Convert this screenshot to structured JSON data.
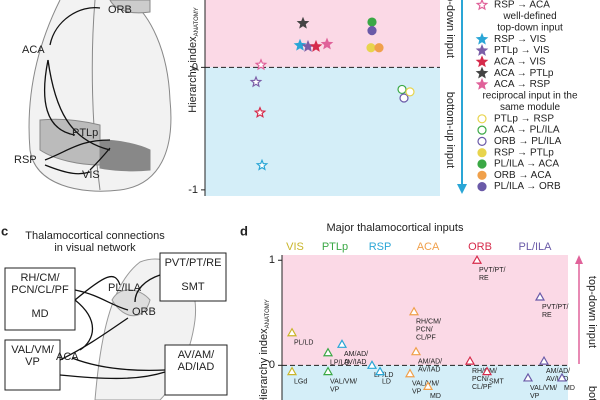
{
  "panel_b": {
    "brain_labels": [
      "ORB",
      "ACA",
      "PTLp",
      "RSP",
      "VIS"
    ],
    "y_axis_label": "Hierarchy index",
    "y_axis_sub": "ANATOMY",
    "yticks": [
      0,
      -1
    ],
    "ylim": [
      -1.05,
      0.55
    ],
    "arrow_top": "top-down input",
    "arrow_bottom": "bottom-up input",
    "stars": [
      {
        "value": 0.36,
        "color": "#444444",
        "filled": true
      },
      {
        "value": 0.18,
        "color": "#2aa6d6",
        "filled": true
      },
      {
        "value": 0.17,
        "color": "#7b5ea7",
        "filled": true
      },
      {
        "value": 0.17,
        "color": "#d62b4b",
        "filled": true
      },
      {
        "value": 0.19,
        "color": "#e0629a",
        "filled": true
      },
      {
        "value": 0.02,
        "color": "#e0629a",
        "filled": false
      },
      {
        "value": -0.12,
        "color": "#7b5ea7",
        "filled": false
      },
      {
        "value": -0.37,
        "color": "#d62b4b",
        "filled": false
      },
      {
        "value": -0.8,
        "color": "#2aa6d6",
        "filled": false
      }
    ],
    "circles": [
      {
        "value": 0.37,
        "color": "#3aa845",
        "filled": true
      },
      {
        "value": 0.3,
        "color": "#6a5aa8",
        "filled": true
      },
      {
        "value": 0.16,
        "color": "#e8d44d",
        "filled": true
      },
      {
        "value": 0.16,
        "color": "#f0a04b",
        "filled": true
      },
      {
        "value": -0.18,
        "color": "#3aa845",
        "filled": false
      },
      {
        "value": -0.25,
        "color": "#6a5aa8",
        "filled": false
      },
      {
        "value": -0.2,
        "color": "#e8d44d",
        "filled": false
      }
    ]
  },
  "legend": [
    {
      "label": "RSP → ACA",
      "marker": "star",
      "filled": false,
      "color": "#e0629a"
    },
    {
      "heading": [
        "well-defined",
        "top-down input"
      ]
    },
    {
      "label": "RSP → VIS",
      "marker": "star",
      "filled": true,
      "color": "#2aa6d6"
    },
    {
      "label": "PTLp → VIS",
      "marker": "star",
      "filled": true,
      "color": "#7b5ea7"
    },
    {
      "label": "ACA → VIS",
      "marker": "star",
      "filled": true,
      "color": "#d62b4b"
    },
    {
      "label": "ACA → PTLp",
      "marker": "star",
      "filled": true,
      "color": "#444444"
    },
    {
      "label": "ACA → RSP",
      "marker": "star",
      "filled": true,
      "color": "#e0629a"
    },
    {
      "heading": [
        "reciprocal input in the",
        "same module"
      ]
    },
    {
      "label": "PTLp → RSP",
      "marker": "circle",
      "filled": false,
      "color": "#e8d44d"
    },
    {
      "label": "ACA → PL/ILA",
      "marker": "circle",
      "filled": false,
      "color": "#3aa845"
    },
    {
      "label": "ORB → PL/ILA",
      "marker": "circle",
      "filled": false,
      "color": "#6a5aa8"
    },
    {
      "label": "RSP → PTLp",
      "marker": "circle",
      "filled": true,
      "color": "#e8d44d"
    },
    {
      "label": "PL/ILA → ACA",
      "marker": "circle",
      "filled": true,
      "color": "#3aa845"
    },
    {
      "label": "ORB → ACA",
      "marker": "circle",
      "filled": true,
      "color": "#f0a04b"
    },
    {
      "label": "PL/ILA → ORB",
      "marker": "circle",
      "filled": true,
      "color": "#6a5aa8"
    }
  ],
  "panel_c": {
    "letter": "c",
    "title": [
      "Thalamocortical connections",
      "in visual network"
    ],
    "boxes": [
      {
        "lines": [
          "RH/CM/",
          "PCN/CL/PF",
          "",
          "MD"
        ]
      },
      {
        "lines": [
          "VAL/VM/",
          "VP"
        ]
      },
      {
        "lines": [
          "PVT/PT/RE",
          "",
          "SMT"
        ]
      },
      {
        "lines": [
          "AV/AM/",
          "AD/IAD"
        ]
      }
    ],
    "areas": [
      "PL/ILA",
      "ORB",
      "ACA"
    ]
  },
  "panel_d": {
    "letter": "d",
    "title": "Major thalamocortical inputs",
    "y_axis_label": "Hierarchy index",
    "y_axis_sub": "ANATOMY",
    "yticks": [
      1,
      0
    ],
    "ylim": [
      -0.33,
      1.05
    ],
    "arrow_top": "top-down input",
    "arrow_bottom": "bott",
    "groups": [
      {
        "name": "VIS",
        "color": "#c9b52a",
        "points": [
          {
            "value": 0.31,
            "lines": [
              "PL/LD"
            ]
          },
          {
            "value": -0.06,
            "lines": [
              "LGd"
            ]
          }
        ]
      },
      {
        "name": "PTLp",
        "color": "#3aa845",
        "points": [
          {
            "value": 0.12,
            "lines": [
              "LP/LD"
            ]
          },
          {
            "value": -0.06,
            "lines": [
              "VAL/VM/",
              "VP"
            ]
          }
        ]
      },
      {
        "name": "RSP",
        "color": "#2aa6d6",
        "points": [
          {
            "value": 0.2,
            "lines": [
              "AM/AD/",
              "AV/IAD"
            ]
          },
          {
            "value": 0.0,
            "lines": [
              "LP/LD"
            ]
          },
          {
            "value": -0.06,
            "lines": [
              "LD"
            ]
          }
        ]
      },
      {
        "name": "ACA",
        "color": "#f0a04b",
        "points": [
          {
            "value": 0.51,
            "lines": [
              "RH/CM/",
              "PCN/",
              "CL/PF"
            ]
          },
          {
            "value": 0.13,
            "lines": [
              "AM/AD/",
              "AV/IAD"
            ]
          },
          {
            "value": -0.08,
            "lines": [
              "VAL/VM/",
              "VP"
            ]
          },
          {
            "value": -0.2,
            "lines": [
              "MD"
            ]
          }
        ]
      },
      {
        "name": "ORB",
        "color": "#d62b4b",
        "points": [
          {
            "value": 1.0,
            "lines": [
              "PVT/PT/",
              "RE"
            ]
          },
          {
            "value": 0.04,
            "lines": [
              "RH/CM/",
              "PCN/",
              "CL/PF"
            ]
          },
          {
            "value": -0.06,
            "lines": [
              "SMT"
            ]
          }
        ]
      },
      {
        "name": "PL/ILA",
        "color": "#6a5aa8",
        "points": [
          {
            "value": 0.65,
            "lines": [
              "PVT/PT/",
              "RE"
            ]
          },
          {
            "value": 0.04,
            "lines": [
              "AM/AD/",
              "AV/IAD"
            ]
          },
          {
            "value": -0.12,
            "lines": [
              "VAL/VM/",
              "VP"
            ]
          },
          {
            "value": -0.12,
            "lines": [
              "MD"
            ]
          }
        ]
      }
    ]
  }
}
